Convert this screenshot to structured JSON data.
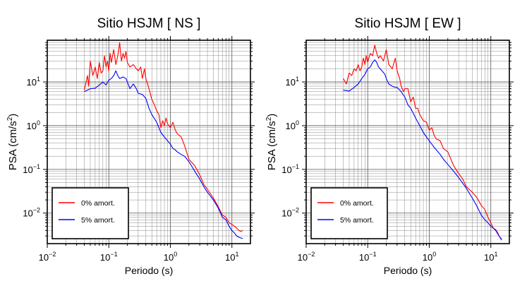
{
  "chart_data": [
    {
      "type": "line",
      "title": "Sitio HSJM [ NS ]",
      "xlabel": "Periodo (s)",
      "ylabel": "PSA (cm/s²)",
      "x_scale": "log",
      "y_scale": "log",
      "xlim": [
        0.01,
        20
      ],
      "ylim": [
        0.002,
        90
      ],
      "x_ticks": [
        {
          "value": 0.01,
          "base": "10",
          "exp": "−2"
        },
        {
          "value": 0.1,
          "base": "10",
          "exp": "−1"
        },
        {
          "value": 1,
          "base": "10",
          "exp": "0"
        },
        {
          "value": 10,
          "base": "10",
          "exp": "1"
        }
      ],
      "y_ticks": [
        {
          "value": 0.01,
          "base": "10",
          "exp": "−2"
        },
        {
          "value": 0.1,
          "base": "10",
          "exp": "−1"
        },
        {
          "value": 1,
          "base": "10",
          "exp": "0"
        },
        {
          "value": 10,
          "base": "10",
          "exp": "1"
        }
      ],
      "grid": true,
      "legend_position": "bottom-left",
      "series": [
        {
          "name": "0% amort.",
          "color": "#ff0000",
          "points": [
            [
              0.04,
              6.5
            ],
            [
              0.045,
              14
            ],
            [
              0.047,
              8
            ],
            [
              0.05,
              30
            ],
            [
              0.055,
              14
            ],
            [
              0.06,
              22
            ],
            [
              0.065,
              12
            ],
            [
              0.07,
              28
            ],
            [
              0.075,
              16
            ],
            [
              0.08,
              18
            ],
            [
              0.085,
              40
            ],
            [
              0.09,
              22
            ],
            [
              0.095,
              30
            ],
            [
              0.1,
              18
            ],
            [
              0.105,
              45
            ],
            [
              0.11,
              28
            ],
            [
              0.12,
              55
            ],
            [
              0.13,
              25
            ],
            [
              0.14,
              40
            ],
            [
              0.15,
              80
            ],
            [
              0.16,
              30
            ],
            [
              0.17,
              45
            ],
            [
              0.18,
              35
            ],
            [
              0.19,
              50
            ],
            [
              0.2,
              28
            ],
            [
              0.22,
              22
            ],
            [
              0.25,
              25
            ],
            [
              0.28,
              20
            ],
            [
              0.3,
              18
            ],
            [
              0.33,
              22
            ],
            [
              0.35,
              12
            ],
            [
              0.38,
              20
            ],
            [
              0.4,
              12
            ],
            [
              0.45,
              7
            ],
            [
              0.5,
              4
            ],
            [
              0.55,
              3
            ],
            [
              0.6,
              2.2
            ],
            [
              0.65,
              1.8
            ],
            [
              0.7,
              0.9
            ],
            [
              0.75,
              1.3
            ],
            [
              0.8,
              1.0
            ],
            [
              0.85,
              1.5
            ],
            [
              0.9,
              1.1
            ],
            [
              1.0,
              0.9
            ],
            [
              1.1,
              1.2
            ],
            [
              1.2,
              0.8
            ],
            [
              1.3,
              0.65
            ],
            [
              1.5,
              0.55
            ],
            [
              1.7,
              0.35
            ],
            [
              2.0,
              0.17
            ],
            [
              2.5,
              0.12
            ],
            [
              3.0,
              0.075
            ],
            [
              3.5,
              0.045
            ],
            [
              4.0,
              0.035
            ],
            [
              5.0,
              0.022
            ],
            [
              6.0,
              0.014
            ],
            [
              7.0,
              0.009
            ],
            [
              8.0,
              0.008
            ],
            [
              9.0,
              0.006
            ],
            [
              10.0,
              0.0055
            ],
            [
              11.0,
              0.005
            ],
            [
              12.0,
              0.0045
            ],
            [
              13.0,
              0.004
            ],
            [
              14.0,
              0.0038
            ],
            [
              15.0,
              0.004
            ]
          ]
        },
        {
          "name": "5% amort.",
          "color": "#0000ff",
          "points": [
            [
              0.04,
              6.0
            ],
            [
              0.05,
              7.0
            ],
            [
              0.06,
              7.2
            ],
            [
              0.07,
              8.5
            ],
            [
              0.08,
              10
            ],
            [
              0.09,
              8.5
            ],
            [
              0.1,
              11
            ],
            [
              0.11,
              12
            ],
            [
              0.12,
              14
            ],
            [
              0.13,
              18
            ],
            [
              0.14,
              14
            ],
            [
              0.15,
              12
            ],
            [
              0.17,
              13
            ],
            [
              0.19,
              12
            ],
            [
              0.2,
              10
            ],
            [
              0.22,
              7
            ],
            [
              0.25,
              9
            ],
            [
              0.28,
              7
            ],
            [
              0.3,
              5.5
            ],
            [
              0.35,
              5.2
            ],
            [
              0.4,
              4.2
            ],
            [
              0.45,
              2.5
            ],
            [
              0.5,
              1.8
            ],
            [
              0.6,
              1.2
            ],
            [
              0.7,
              0.7
            ],
            [
              0.8,
              0.55
            ],
            [
              0.9,
              0.45
            ],
            [
              1.0,
              0.38
            ],
            [
              1.1,
              0.3
            ],
            [
              1.2,
              0.28
            ],
            [
              1.3,
              0.25
            ],
            [
              1.5,
              0.22
            ],
            [
              1.7,
              0.2
            ],
            [
              2.0,
              0.15
            ],
            [
              2.5,
              0.09
            ],
            [
              3.0,
              0.06
            ],
            [
              3.5,
              0.04
            ],
            [
              4.0,
              0.03
            ],
            [
              5.0,
              0.02
            ],
            [
              6.0,
              0.013
            ],
            [
              7.0,
              0.008
            ],
            [
              8.0,
              0.007
            ],
            [
              9.0,
              0.005
            ],
            [
              10.0,
              0.004
            ],
            [
              11.0,
              0.0035
            ],
            [
              12.0,
              0.003
            ],
            [
              13.0,
              0.0028
            ],
            [
              15.0,
              0.0026
            ]
          ]
        }
      ]
    },
    {
      "type": "line",
      "title": "Sitio HSJM [ EW ]",
      "xlabel": "Periodo (s)",
      "ylabel": "PSA (cm/s²)",
      "x_scale": "log",
      "y_scale": "log",
      "xlim": [
        0.01,
        20
      ],
      "ylim": [
        0.002,
        90
      ],
      "x_ticks": [
        {
          "value": 0.01,
          "base": "10",
          "exp": "−2"
        },
        {
          "value": 0.1,
          "base": "10",
          "exp": "−1"
        },
        {
          "value": 1,
          "base": "10",
          "exp": "0"
        },
        {
          "value": 10,
          "base": "10",
          "exp": "1"
        }
      ],
      "y_ticks": [
        {
          "value": 0.01,
          "base": "10",
          "exp": "−2"
        },
        {
          "value": 0.1,
          "base": "10",
          "exp": "−1"
        },
        {
          "value": 1,
          "base": "10",
          "exp": "0"
        },
        {
          "value": 10,
          "base": "10",
          "exp": "1"
        }
      ],
      "grid": true,
      "legend_position": "bottom-left",
      "series": [
        {
          "name": "0% amort.",
          "color": "#ff0000",
          "points": [
            [
              0.04,
              12
            ],
            [
              0.045,
              9
            ],
            [
              0.05,
              16
            ],
            [
              0.055,
              14
            ],
            [
              0.06,
              20
            ],
            [
              0.065,
              18
            ],
            [
              0.07,
              25
            ],
            [
              0.075,
              18
            ],
            [
              0.08,
              22
            ],
            [
              0.085,
              35
            ],
            [
              0.09,
              25
            ],
            [
              0.095,
              40
            ],
            [
              0.1,
              28
            ],
            [
              0.11,
              45
            ],
            [
              0.12,
              40
            ],
            [
              0.13,
              70
            ],
            [
              0.14,
              45
            ],
            [
              0.15,
              35
            ],
            [
              0.16,
              40
            ],
            [
              0.18,
              30
            ],
            [
              0.2,
              55
            ],
            [
              0.22,
              25
            ],
            [
              0.25,
              20
            ],
            [
              0.28,
              35
            ],
            [
              0.3,
              18
            ],
            [
              0.33,
              12
            ],
            [
              0.35,
              8
            ],
            [
              0.38,
              6
            ],
            [
              0.4,
              7
            ],
            [
              0.45,
              7
            ],
            [
              0.5,
              3.5
            ],
            [
              0.55,
              4.5
            ],
            [
              0.6,
              2.5
            ],
            [
              0.65,
              2.5
            ],
            [
              0.7,
              1.8
            ],
            [
              0.8,
              1.3
            ],
            [
              0.9,
              1.2
            ],
            [
              1.0,
              0.8
            ],
            [
              1.1,
              0.9
            ],
            [
              1.2,
              0.6
            ],
            [
              1.3,
              0.5
            ],
            [
              1.5,
              0.45
            ],
            [
              1.7,
              0.3
            ],
            [
              2.0,
              0.25
            ],
            [
              2.5,
              0.12
            ],
            [
              3.0,
              0.08
            ],
            [
              3.5,
              0.06
            ],
            [
              4.0,
              0.04
            ],
            [
              5.0,
              0.03
            ],
            [
              6.0,
              0.022
            ],
            [
              7.0,
              0.015
            ],
            [
              8.0,
              0.012
            ],
            [
              9.0,
              0.008
            ],
            [
              10.0,
              0.006
            ],
            [
              11.0,
              0.0045
            ],
            [
              12.0,
              0.0042
            ],
            [
              13.0,
              0.0035
            ],
            [
              14.0,
              0.0028
            ],
            [
              15.0,
              0.0026
            ]
          ]
        },
        {
          "name": "5% amort.",
          "color": "#0000ff",
          "points": [
            [
              0.04,
              6.5
            ],
            [
              0.05,
              6.2
            ],
            [
              0.06,
              7.5
            ],
            [
              0.07,
              9
            ],
            [
              0.08,
              12
            ],
            [
              0.09,
              15
            ],
            [
              0.1,
              20
            ],
            [
              0.11,
              22
            ],
            [
              0.12,
              28
            ],
            [
              0.13,
              32
            ],
            [
              0.14,
              28
            ],
            [
              0.15,
              22
            ],
            [
              0.17,
              18
            ],
            [
              0.19,
              15
            ],
            [
              0.2,
              12
            ],
            [
              0.22,
              9
            ],
            [
              0.25,
              8
            ],
            [
              0.28,
              7.5
            ],
            [
              0.3,
              7.5
            ],
            [
              0.35,
              6
            ],
            [
              0.4,
              4.5
            ],
            [
              0.45,
              3
            ],
            [
              0.5,
              2.5
            ],
            [
              0.6,
              1.5
            ],
            [
              0.7,
              1.0
            ],
            [
              0.8,
              0.7
            ],
            [
              0.9,
              0.55
            ],
            [
              1.0,
              0.45
            ],
            [
              1.2,
              0.32
            ],
            [
              1.5,
              0.22
            ],
            [
              1.7,
              0.17
            ],
            [
              2.0,
              0.13
            ],
            [
              2.5,
              0.09
            ],
            [
              3.0,
              0.065
            ],
            [
              3.5,
              0.048
            ],
            [
              4.0,
              0.037
            ],
            [
              5.0,
              0.022
            ],
            [
              6.0,
              0.014
            ],
            [
              7.0,
              0.009
            ],
            [
              8.0,
              0.007
            ],
            [
              9.0,
              0.006
            ],
            [
              10.0,
              0.005
            ],
            [
              11.0,
              0.0045
            ],
            [
              12.0,
              0.004
            ],
            [
              13.0,
              0.0033
            ],
            [
              15.0,
              0.0024
            ]
          ]
        }
      ]
    }
  ]
}
